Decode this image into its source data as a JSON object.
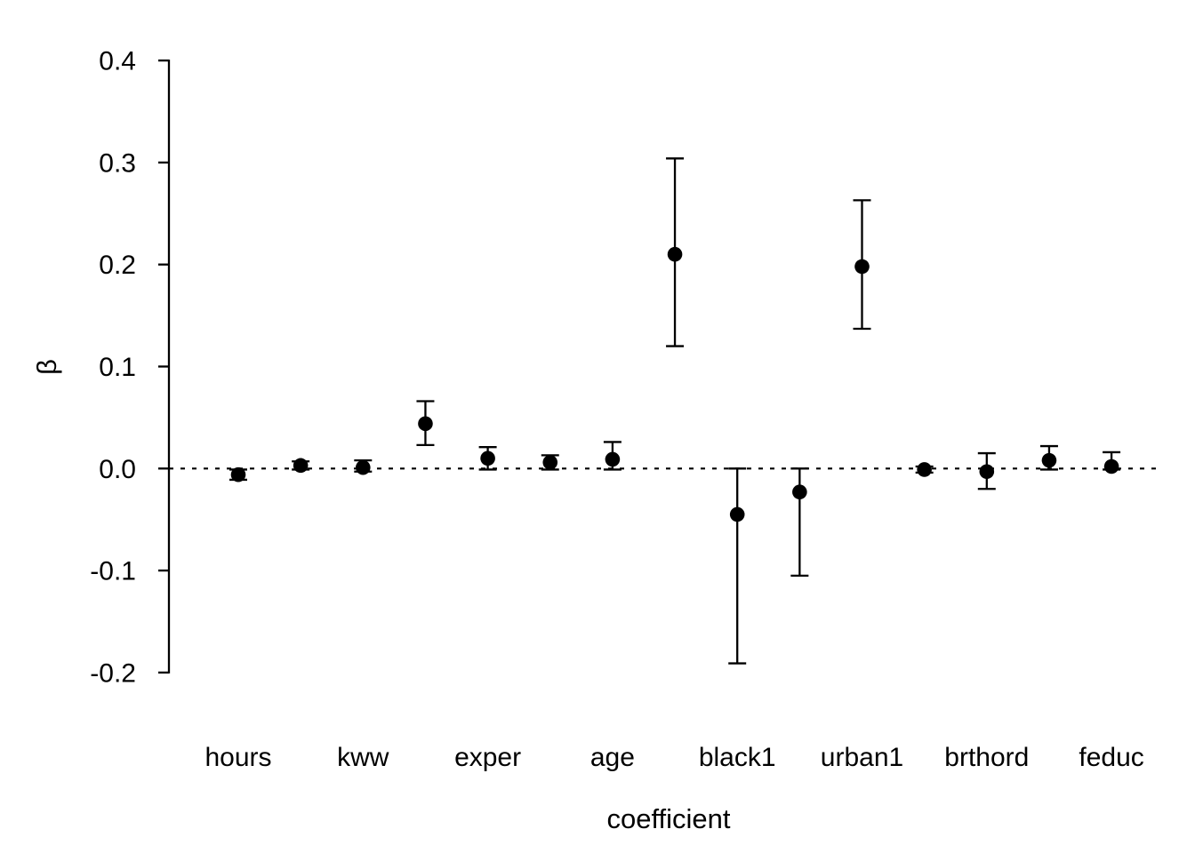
{
  "chart_data": {
    "type": "scatter",
    "subtype": "coefficient-plot-with-error-bars",
    "title": "",
    "xlabel": "coefficient",
    "ylabel": "β",
    "ylim": [
      -0.25,
      0.42
    ],
    "grid": false,
    "legend": false,
    "zero_reference_line": {
      "value": 0.0,
      "style": "dotted"
    },
    "y_ticks": [
      {
        "value": 0.4,
        "label": "0.4"
      },
      {
        "value": 0.3,
        "label": "0.3"
      },
      {
        "value": 0.2,
        "label": "0.2"
      },
      {
        "value": 0.1,
        "label": "0.1"
      },
      {
        "value": 0.0,
        "label": "0.0"
      },
      {
        "value": -0.1,
        "label": "-0.1"
      },
      {
        "value": -0.2,
        "label": "-0.2"
      }
    ],
    "x_tick_labels_visible": [
      "hours",
      "kww",
      "exper",
      "age",
      "black1",
      "urban1",
      "brthord",
      "feduc"
    ],
    "points": [
      {
        "label": "hours",
        "estimate": -0.006,
        "lower": -0.011,
        "upper": -0.001
      },
      {
        "label": "",
        "estimate": 0.003,
        "lower": -0.001,
        "upper": 0.007
      },
      {
        "label": "kww",
        "estimate": 0.001,
        "lower": -0.003,
        "upper": 0.008
      },
      {
        "label": "",
        "estimate": 0.044,
        "lower": 0.023,
        "upper": 0.066
      },
      {
        "label": "exper",
        "estimate": 0.01,
        "lower": -0.001,
        "upper": 0.021
      },
      {
        "label": "",
        "estimate": 0.006,
        "lower": -0.001,
        "upper": 0.013
      },
      {
        "label": "age",
        "estimate": 0.009,
        "lower": -0.001,
        "upper": 0.026
      },
      {
        "label": "",
        "estimate": 0.21,
        "lower": 0.12,
        "upper": 0.304
      },
      {
        "label": "black1",
        "estimate": -0.045,
        "lower": -0.191,
        "upper": 0.0
      },
      {
        "label": "",
        "estimate": -0.023,
        "lower": -0.105,
        "upper": 0.0
      },
      {
        "label": "urban1",
        "estimate": 0.198,
        "lower": 0.137,
        "upper": 0.263
      },
      {
        "label": "",
        "estimate": -0.001,
        "lower": -0.004,
        "upper": 0.002
      },
      {
        "label": "brthord",
        "estimate": -0.003,
        "lower": -0.02,
        "upper": 0.015
      },
      {
        "label": "",
        "estimate": 0.008,
        "lower": -0.001,
        "upper": 0.022
      },
      {
        "label": "feduc",
        "estimate": 0.002,
        "lower": -0.001,
        "upper": 0.016
      }
    ],
    "colors": {
      "point": "#000000",
      "error_bar": "#000000",
      "axis": "#000000",
      "background": "#ffffff"
    }
  }
}
